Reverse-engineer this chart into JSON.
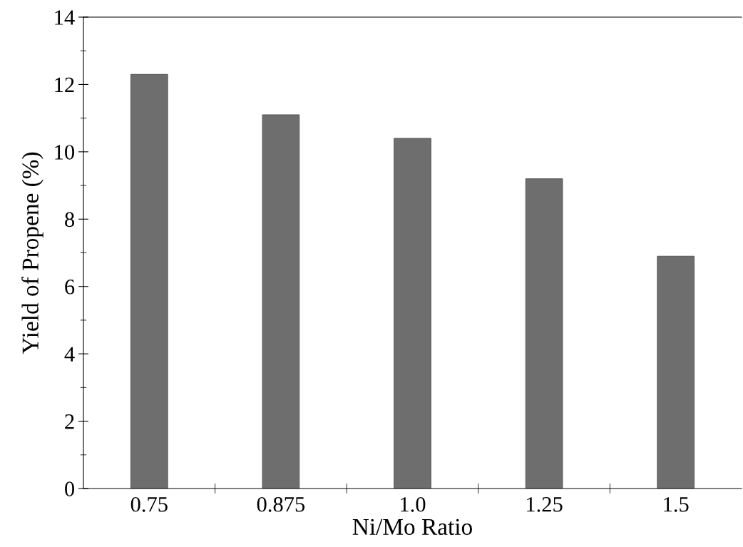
{
  "chart_data": {
    "type": "bar",
    "xlabel": "Ni/Mo Ratio",
    "ylabel": "Yield of Propene (%)",
    "categories": [
      "0.75",
      "0.875",
      "1.0",
      "1.25",
      "1.5"
    ],
    "values": [
      12.3,
      11.1,
      10.4,
      9.2,
      6.9
    ],
    "color": "#6e6e6e",
    "ylim": [
      0,
      14
    ],
    "yticks": [
      0,
      2,
      4,
      6,
      8,
      10,
      12,
      14
    ],
    "grid": false,
    "legend": false
  }
}
